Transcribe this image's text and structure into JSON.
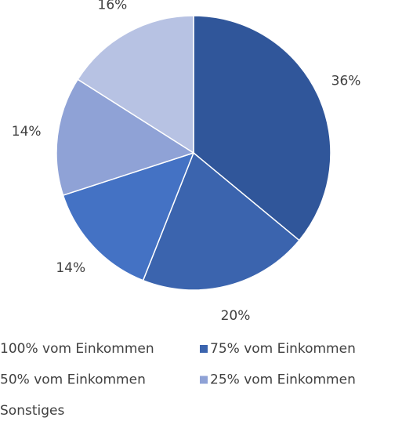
{
  "chart_data": {
    "type": "pie",
    "categories": [
      "100% vom Einkommen",
      "75% vom Einkommen",
      "50% vom Einkommen",
      "25% vom Einkommen",
      "Sonstiges"
    ],
    "values": [
      36,
      20,
      14,
      14,
      16
    ],
    "value_labels": [
      "36%",
      "20%",
      "14%",
      "14%",
      "16%"
    ],
    "colors": [
      "#30569a",
      "#3b64ae",
      "#4472c4",
      "#8fa2d6",
      "#b7c2e3"
    ],
    "legend": "bottom"
  }
}
